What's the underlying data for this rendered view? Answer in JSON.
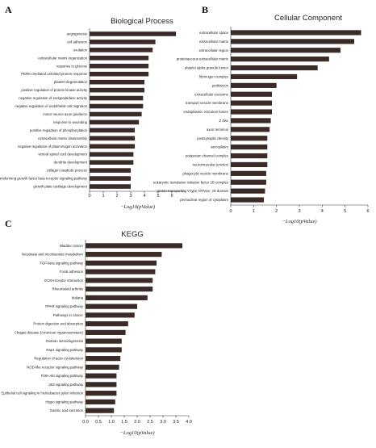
{
  "chart_data": [
    {
      "panel": "A",
      "type": "bar",
      "orientation": "horizontal",
      "title": "Biological Process",
      "xlabel": "−Log10(pValue)",
      "xlim": [
        0,
        7
      ],
      "xticks": [
        0,
        1,
        2,
        3,
        4,
        5,
        6
      ],
      "tick_labels": [
        "0",
        "1",
        "2",
        "3",
        "4",
        "5",
        "6"
      ],
      "bar_color": "#3a2a28",
      "categories": [
        "angiogenesis",
        "cell adhesion",
        "ovulation",
        "extracellular matrix organization",
        "response to glucose",
        "PERK-mediated unfolded protein response",
        "platelet degranulation",
        "positive regulation of protein kinase activity",
        "negative regulation of endopeptidase activity",
        "negative regulation of endothelial cell migration",
        "motor neuron axon guidance",
        "response to wounding",
        "positive regulation of phosphorylation",
        "extracellular matrix disassembly",
        "negative regulation of plasminogen activation",
        "ventral spinal cord development",
        "dendrite development",
        "collagen catabolic process",
        "transforming growth factor beta receptor signaling pathway",
        "growth plate cartilage development"
      ],
      "values": [
        6.3,
        4.8,
        4.6,
        4.3,
        4.3,
        4.3,
        4.0,
        4.0,
        3.9,
        3.9,
        3.8,
        3.6,
        3.3,
        3.3,
        3.3,
        3.2,
        3.2,
        3.0,
        3.0,
        3.0
      ]
    },
    {
      "panel": "B",
      "type": "bar",
      "orientation": "horizontal",
      "title": "Cellular Component",
      "xlabel": "−Log10(pValue)",
      "xlim": [
        0,
        6
      ],
      "xticks": [
        0,
        1,
        2,
        3,
        4,
        5,
        6
      ],
      "tick_labels": [
        "0",
        "1",
        "2",
        "3",
        "4",
        "5",
        "6"
      ],
      "bar_color": "#3a2a28",
      "categories": [
        "extracellular space",
        "extracellular matrix",
        "extracellular region",
        "proteinaceous extracellular matrix",
        "platelet alpha granule lumen",
        "fibrinogen complex",
        "perikaryon",
        "extracellular exosome",
        "transport vesicle membrane",
        "endoplasmic reticulum lumen",
        "Z disc",
        "axon terminus",
        "postsynaptic density",
        "sarcoplasm",
        "potassium channel complex",
        "neuromuscular junction",
        "phagocytic vesicle membrane",
        "eukaryotic translation initiation factor 2B complex",
        "proton-transporting V-type ATPase, V0 domain",
        "perinuclear region of cytoplasm"
      ],
      "values": [
        5.7,
        5.4,
        4.8,
        4.3,
        3.8,
        2.9,
        2.0,
        1.8,
        1.8,
        1.8,
        1.75,
        1.7,
        1.6,
        1.6,
        1.6,
        1.6,
        1.55,
        1.55,
        1.5,
        1.45
      ]
    },
    {
      "panel": "C",
      "type": "bar",
      "orientation": "horizontal",
      "title": "KEGG",
      "xlabel": "−Log10(pValue)",
      "xlim": [
        0,
        4.0
      ],
      "xticks": [
        0,
        0.5,
        1.0,
        1.5,
        2.0,
        2.5,
        3.0,
        3.5,
        4.0
      ],
      "tick_labels": [
        "0.0",
        "0.5",
        "1.0",
        "1.5",
        "2.0",
        "2.5",
        "3.0",
        "3.5",
        "4.0"
      ],
      "bar_color": "#3a2a28",
      "categories": [
        "Bladder cancer",
        "Nicotinate and nicotinamide metabolism",
        "TGF-beta signaling pathway",
        "Focal adhesion",
        "ECM-receptor interaction",
        "Rheumatoid arthritis",
        "Malaria",
        "PPAR signaling pathway",
        "Pathways in cancer",
        "Protein digestion and absorption",
        "Chagas disease (American trypanosomiasis)",
        "Ovarian steroidogenesis",
        "Rap1 signaling pathway",
        "Regulation of actin cytoskeleton",
        "NOD-like receptor signaling pathway",
        "PI3K-Akt signaling pathway",
        "p53 signaling pathway",
        "Epithelial cell signaling in Helicobacter pylori infection",
        "Hippo signaling pathway",
        "Gastric acid secretion"
      ],
      "values": [
        3.75,
        2.95,
        2.75,
        2.7,
        2.6,
        2.6,
        2.4,
        2.0,
        1.9,
        1.65,
        1.55,
        1.4,
        1.4,
        1.35,
        1.3,
        1.2,
        1.2,
        1.2,
        1.15,
        1.1
      ]
    }
  ]
}
